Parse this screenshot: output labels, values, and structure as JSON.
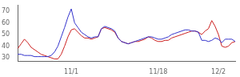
{
  "chart_data": {
    "type": "line",
    "categories": [
      null,
      null,
      null,
      null,
      null,
      null,
      null,
      null,
      null,
      null,
      null,
      null,
      null,
      null,
      null,
      null,
      "11/1",
      null,
      null,
      null,
      null,
      null,
      null,
      null,
      null,
      null,
      null,
      null,
      null,
      null,
      null,
      null,
      null,
      null,
      null,
      null,
      null,
      null,
      null,
      null,
      null,
      null,
      "11/18",
      null,
      null,
      null,
      null,
      null,
      null,
      null,
      null,
      null,
      null,
      null,
      null,
      null,
      null,
      null,
      null,
      null,
      "12/2",
      null,
      null,
      null,
      null,
      null
    ],
    "series": [
      {
        "color": "#3333cc",
        "values": [
          33,
          33,
          32,
          32,
          32,
          31,
          31,
          31,
          31,
          31,
          32,
          35,
          40,
          48,
          56,
          65,
          72,
          60,
          56,
          52,
          50,
          48,
          47,
          48,
          48,
          55,
          57,
          56,
          55,
          53,
          47,
          44,
          43,
          42,
          43,
          44,
          45,
          46,
          47,
          48,
          48,
          47,
          46,
          46,
          47,
          48,
          50,
          51,
          52,
          53,
          54,
          54,
          53,
          53,
          52,
          45,
          45,
          44,
          45,
          47,
          46,
          43,
          46,
          46,
          46,
          44
        ]
      },
      {
        "color": "#cc2222",
        "values": [
          38,
          42,
          46,
          43,
          39,
          37,
          35,
          33,
          32,
          31,
          30,
          29,
          29,
          33,
          40,
          48,
          54,
          55,
          52,
          49,
          47,
          47,
          46,
          47,
          48,
          55,
          56,
          55,
          54,
          52,
          47,
          44,
          43,
          42,
          43,
          44,
          44,
          45,
          46,
          48,
          47,
          45,
          44,
          44,
          45,
          45,
          47,
          48,
          49,
          50,
          51,
          52,
          53,
          53,
          52,
          50,
          53,
          55,
          62,
          57,
          50,
          40,
          39,
          40,
          43,
          44
        ]
      }
    ],
    "ylim": [
      27,
      75
    ],
    "yticks": [
      30,
      40,
      50,
      60,
      70
    ],
    "grid": false
  }
}
